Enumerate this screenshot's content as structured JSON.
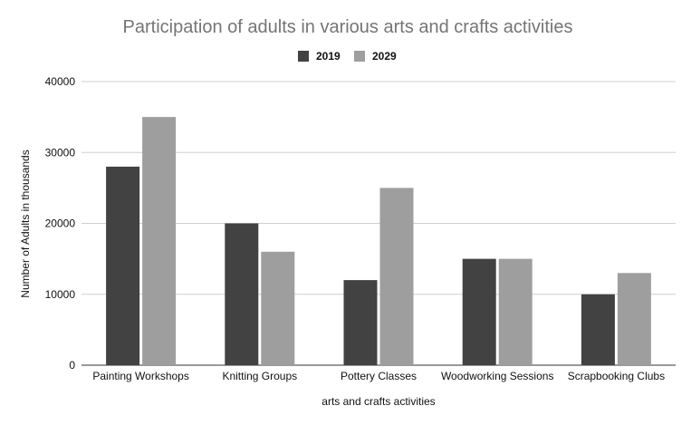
{
  "chart_data": {
    "type": "bar",
    "title": "Participation of adults in various arts and crafts activities",
    "xlabel": "arts and crafts activities",
    "ylabel": "Number of Adults in thousands",
    "categories": [
      "Painting Workshops",
      "Knitting Groups",
      "Pottery Classes",
      "Woodworking Sessions",
      "Scrapbooking Clubs"
    ],
    "series": [
      {
        "name": "2019",
        "color": "#424242",
        "values": [
          28000,
          20000,
          12000,
          15000,
          10000
        ]
      },
      {
        "name": "2029",
        "color": "#9e9e9e",
        "values": [
          35000,
          16000,
          25000,
          15000,
          13000
        ]
      }
    ],
    "ylim": [
      0,
      40000
    ],
    "yticks": [
      "0",
      "10000",
      "20000",
      "30000",
      "40000"
    ],
    "grid": true,
    "legend_position": "top-center"
  }
}
